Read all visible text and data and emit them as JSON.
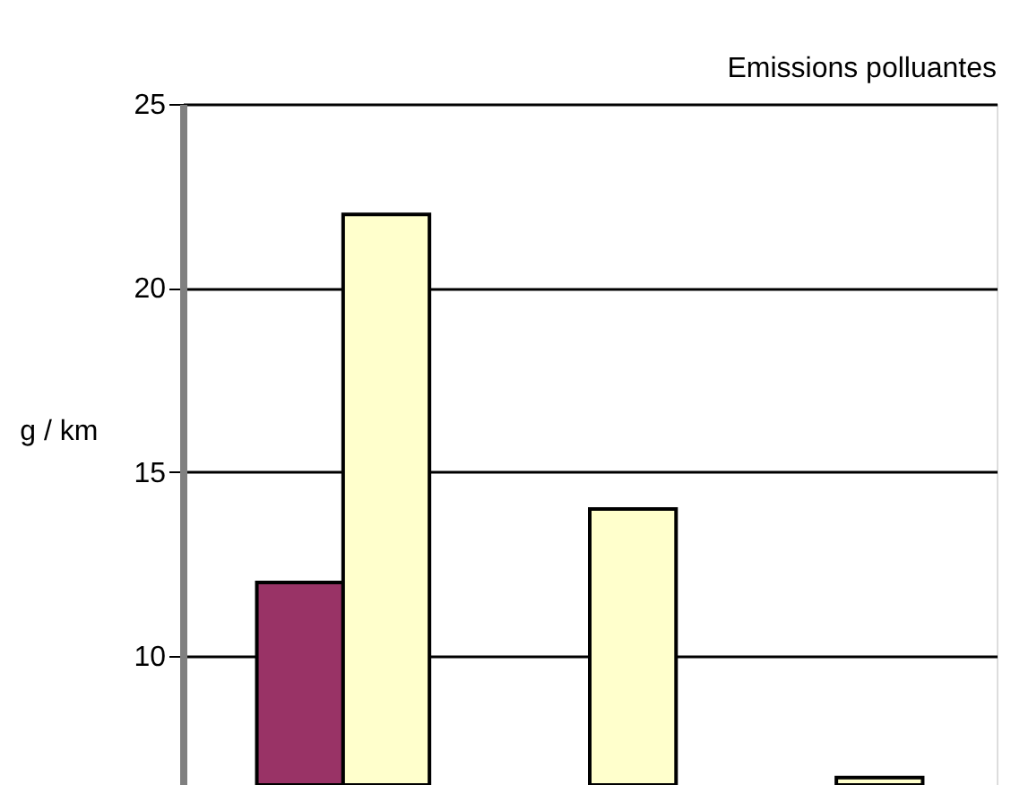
{
  "chart_data": {
    "type": "bar",
    "title": "Emissions polluantes",
    "ylabel": "g / km",
    "categories": [
      null,
      null,
      null
    ],
    "series": [
      {
        "color": "#993366",
        "values": [
          12,
          null,
          null
        ]
      },
      {
        "color": "#ffffcc",
        "values": [
          22,
          14,
          6.7
        ]
      }
    ],
    "ylim": [
      6.5,
      25
    ],
    "yticks": [
      10,
      15,
      20,
      25
    ],
    "grid": "y",
    "tick_labels": "y",
    "legend": false
  }
}
